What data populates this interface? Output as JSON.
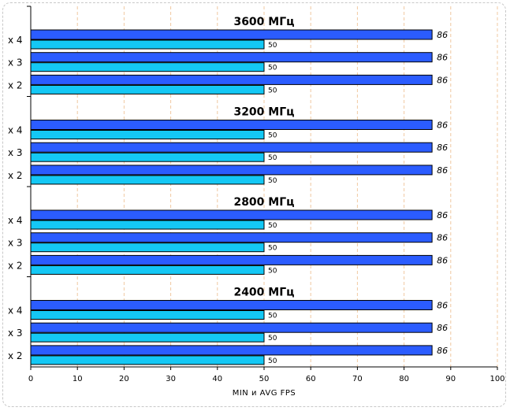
{
  "chart_data": {
    "type": "bar",
    "orientation": "horizontal",
    "xlabel": "MIN и AVG FPS",
    "xlim": [
      0,
      100
    ],
    "xticks": [
      0,
      10,
      20,
      30,
      40,
      50,
      60,
      70,
      80,
      90,
      100
    ],
    "grid": "vertical dashed",
    "colors": {
      "avg": "#2b5cff",
      "min": "#14c8f5",
      "grid": "#f0c8a0",
      "frame": "#c8c8c8"
    },
    "groups": [
      {
        "title": "3600 МГц",
        "rows": [
          {
            "label": "x 4",
            "avg": 86,
            "min": 50
          },
          {
            "label": "x 3",
            "avg": 86,
            "min": 50
          },
          {
            "label": "x 2",
            "avg": 86,
            "min": 50
          }
        ]
      },
      {
        "title": "3200 МГц",
        "rows": [
          {
            "label": "x 4",
            "avg": 86,
            "min": 50
          },
          {
            "label": "x 3",
            "avg": 86,
            "min": 50
          },
          {
            "label": "x 2",
            "avg": 86,
            "min": 50
          }
        ]
      },
      {
        "title": "2800 МГц",
        "rows": [
          {
            "label": "x 4",
            "avg": 86,
            "min": 50
          },
          {
            "label": "x 3",
            "avg": 86,
            "min": 50
          },
          {
            "label": "x 2",
            "avg": 86,
            "min": 50
          }
        ]
      },
      {
        "title": "2400 МГц",
        "rows": [
          {
            "label": "x 4",
            "avg": 86,
            "min": 50
          },
          {
            "label": "x 3",
            "avg": 86,
            "min": 50
          },
          {
            "label": "x 2",
            "avg": 86,
            "min": 50
          }
        ]
      }
    ]
  }
}
